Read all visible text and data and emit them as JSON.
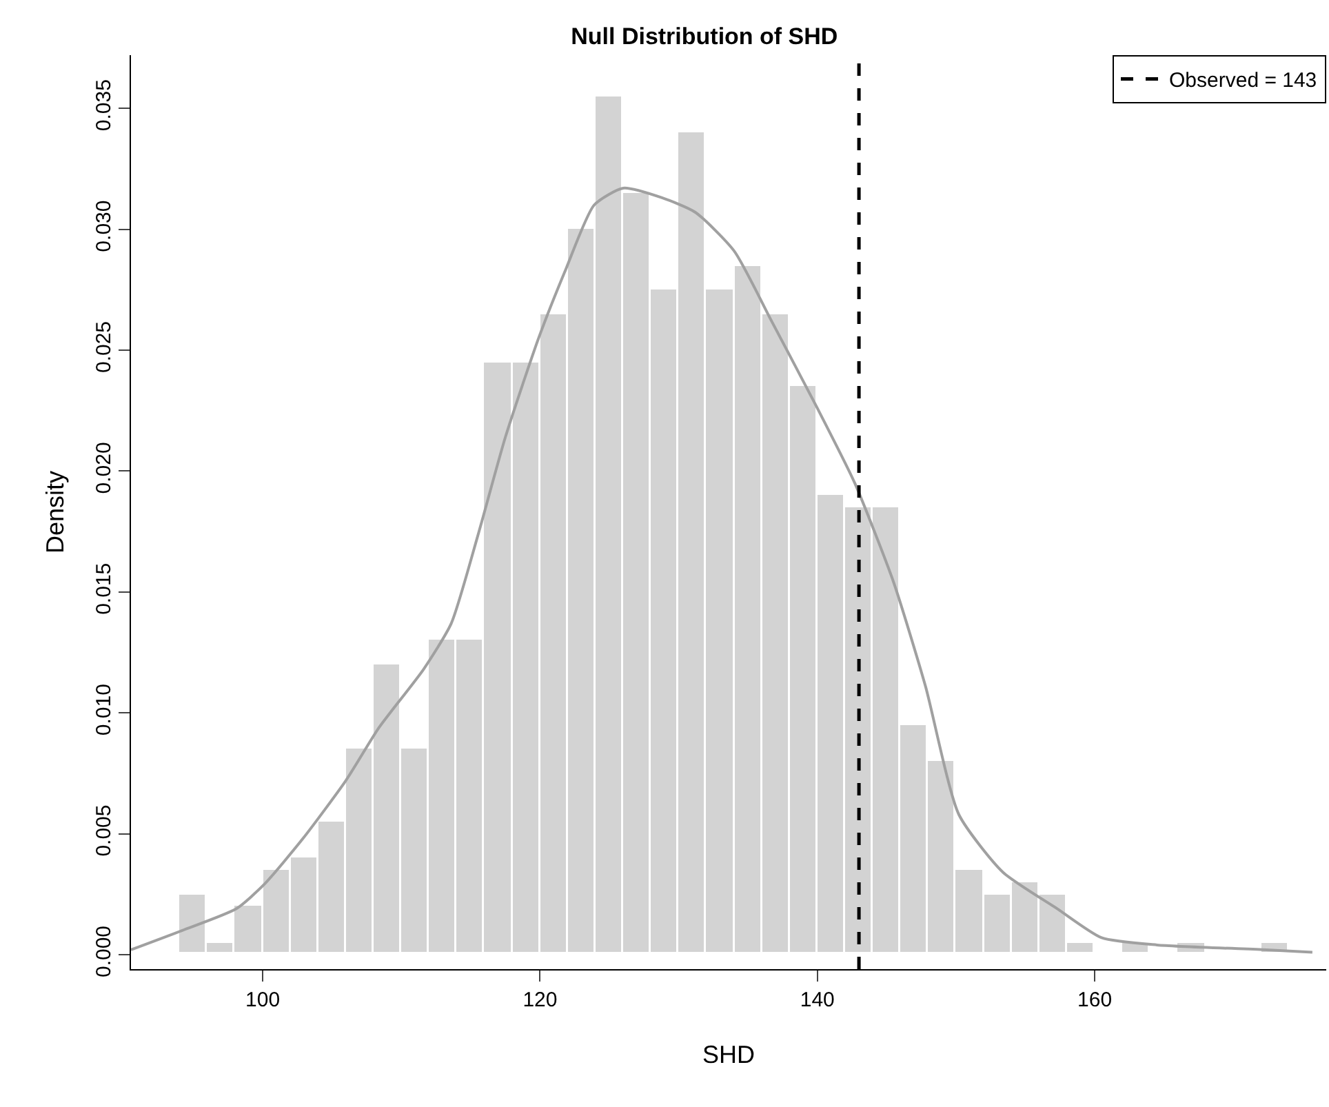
{
  "chart_data": {
    "type": "histogram",
    "title": "Null Distribution of SHD",
    "xlabel": "SHD",
    "ylabel": "Density",
    "bins": [
      94,
      96,
      98,
      100,
      102,
      104,
      106,
      108,
      110,
      112,
      114,
      116,
      118,
      120,
      122,
      124,
      126,
      128,
      130,
      132,
      134,
      136,
      138,
      140,
      142,
      144,
      146,
      148,
      150,
      152,
      154,
      156,
      158,
      160,
      162,
      164,
      166,
      168,
      170,
      172,
      174
    ],
    "values": [
      0.0025,
      0.0005,
      0.002,
      0.0035,
      0.004,
      0.0055,
      0.0085,
      0.012,
      0.0085,
      0.013,
      0.013,
      0.0245,
      0.0245,
      0.0265,
      0.03,
      0.0355,
      0.0315,
      0.0275,
      0.034,
      0.0275,
      0.0285,
      0.0265,
      0.0235,
      0.019,
      0.0185,
      0.0185,
      0.0095,
      0.008,
      0.0035,
      0.0025,
      0.003,
      0.0025,
      0.0005,
      0,
      0.0005,
      0,
      0.0005,
      0,
      0,
      0.0005
    ],
    "color": "#d3d3d3",
    "series": [
      {
        "type": "line",
        "color": "#a0a0a0",
        "x": [
          90.5,
          94.2,
          98.1,
          100.1,
          102.9,
          106,
          108.4,
          111.6,
          113.6,
          115.5,
          117.5,
          119.9,
          121.9,
          123.9,
          126,
          128.8,
          131.2,
          134,
          136.7,
          140,
          142.7,
          145.5,
          147.8,
          150.2,
          153.4,
          157.3,
          160.5,
          164.5,
          172.4,
          175.7
        ],
        "values": [
          0.0002,
          0.001,
          0.0019,
          0.0029,
          0.0048,
          0.0072,
          0.0094,
          0.0118,
          0.0137,
          0.0173,
          0.0214,
          0.0255,
          0.0284,
          0.031,
          0.0317,
          0.0313,
          0.0307,
          0.0291,
          0.0262,
          0.0226,
          0.0195,
          0.0154,
          0.0111,
          0.0058,
          0.0034,
          0.0019,
          0.0007,
          0.0004,
          0.0002,
          0.0001
        ]
      }
    ],
    "ref_lines": [
      {
        "axis": "x",
        "value": 143,
        "label": "Observed = 143",
        "color": "#000000",
        "line_style": "dashed"
      }
    ],
    "xlim": [
      90.5,
      176.7
    ],
    "xticks": [
      100,
      120,
      140,
      160
    ],
    "ylim": [
      -0.0006,
      0.0372
    ],
    "yticks": [
      {
        "value": 0,
        "label": "0.000"
      },
      0.005,
      {
        "value": 0.01,
        "label": "0.010"
      },
      0.015,
      {
        "value": 0.02,
        "label": "0.020"
      },
      0.025,
      {
        "value": 0.03,
        "label": "0.030"
      },
      0.035
    ],
    "grid": false,
    "legend": "top right"
  }
}
